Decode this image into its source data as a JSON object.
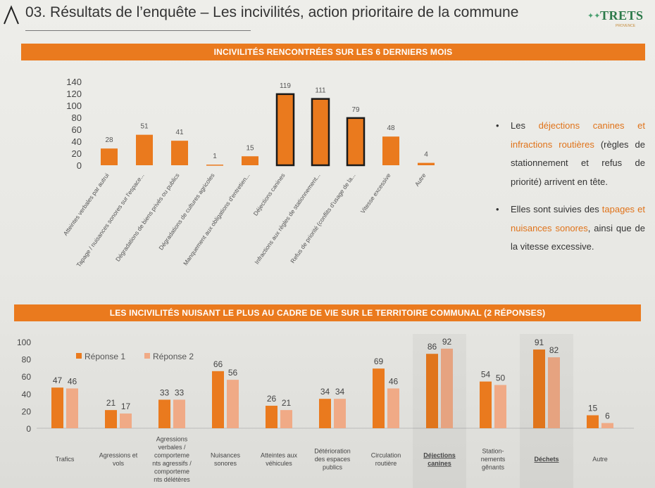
{
  "header": {
    "title": "03. Résultats de l’enquête – Les incivilités, action prioritaire de la commune",
    "logo_text": "TRETS",
    "logo_stars": "✦✦",
    "logo_sub": "PROVENCE"
  },
  "section1": {
    "banner": "INCIVILITÉS RENCONTRÉES SUR LES 6 DERNIERS MOIS"
  },
  "section2": {
    "banner": "LES INCIVILITÉS NUISANT LE PLUS AU CADRE DE VIE SUR LE TERRITOIRE COMMUNAL (2 RÉPONSES)"
  },
  "bullets": {
    "marker": "•",
    "b1_pre": "Les ",
    "b1_hl": "déjections canines et infractions routières",
    "b1_post": " (règles de stationnement et refus de priorité) arrivent en tête.",
    "b2_pre": "Elles sont suivies des ",
    "b2_hl": "tapages et nuisances sonores",
    "b2_post": ", ainsi que de la vitesse excessive."
  },
  "colors": {
    "orange": "#ea7a1e",
    "light_orange": "#f0aa86",
    "highlight_outline": "#1a1a1a"
  },
  "chart_data": [
    {
      "type": "bar",
      "categories": [
        "Atteintes verbales par autrui",
        "Tapage / nuisances sonores sur l'espace...",
        "Dégradations de biens privés ou publics",
        "Dégradations de cultures agricoles",
        "Manquement aux obligations d'entretien...",
        "Déjections canines",
        "Infractions aux règles de stationnement...",
        "Refus de priorité (conflits d'usage de la...",
        "Vitesse excessive",
        "Autre"
      ],
      "values": [
        28,
        51,
        41,
        1,
        15,
        119,
        111,
        79,
        48,
        4
      ],
      "data_labels": [
        "28",
        "51",
        "41",
        "1",
        "15",
        "119",
        "111",
        "79",
        "48",
        "4"
      ],
      "highlighted": [
        5,
        6,
        7
      ],
      "yticks": [
        "0",
        "20",
        "40",
        "60",
        "80",
        "100",
        "120",
        "140"
      ],
      "ylim": [
        0,
        140
      ]
    },
    {
      "type": "bar",
      "categories": [
        [
          "Trafics"
        ],
        [
          "Agressions et",
          "vols"
        ],
        [
          "Agressions",
          "verbales /",
          "comporteme",
          "nts agressifs /",
          "comporteme",
          "nts délétères"
        ],
        [
          "Nuisances",
          "sonores"
        ],
        [
          "Atteintes aux",
          "véhicules"
        ],
        [
          "Détérioration",
          "des espaces",
          "publics"
        ],
        [
          "Circulation",
          "routière"
        ],
        [
          "Déjections",
          "canines"
        ],
        [
          "Station-",
          "nements",
          "gênants"
        ],
        [
          "Déchets"
        ],
        [
          "Autre"
        ]
      ],
      "emphasized": [
        7,
        9
      ],
      "series": [
        {
          "name": "Réponse 1",
          "values": [
            47,
            21,
            33,
            66,
            26,
            34,
            69,
            86,
            54,
            91,
            15
          ],
          "labels": [
            "47",
            "21",
            "33",
            "66",
            "26",
            "34",
            "69",
            "86",
            "54",
            "91",
            "15"
          ]
        },
        {
          "name": "Réponse 2",
          "values": [
            46,
            17,
            33,
            56,
            21,
            34,
            46,
            92,
            50,
            82,
            6
          ],
          "labels": [
            "46",
            "17",
            "33",
            "56",
            "21",
            "34",
            "46",
            "92",
            "50",
            "82",
            "6"
          ]
        }
      ],
      "yticks": [
        "0",
        "20",
        "40",
        "60",
        "80",
        "100"
      ],
      "ylim": [
        0,
        100
      ],
      "legend": "top-left"
    }
  ]
}
